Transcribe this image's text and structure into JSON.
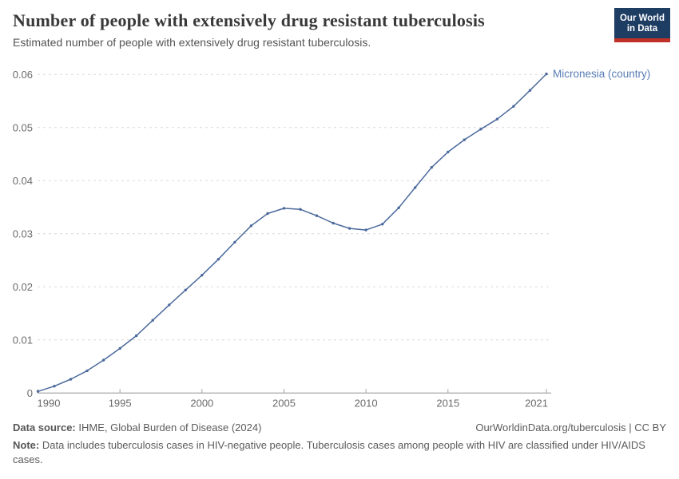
{
  "header": {
    "title": "Number of people with extensively drug resistant tuberculosis",
    "subtitle": "Estimated number of people with extensively drug resistant tuberculosis.",
    "logo_line1": "Our World",
    "logo_line2": "in Data"
  },
  "chart_data": {
    "type": "line",
    "title": "Number of people with extensively drug resistant tuberculosis",
    "xlabel": "",
    "ylabel": "",
    "xlim": [
      1990,
      2021
    ],
    "ylim": [
      0,
      0.06
    ],
    "x_ticks": [
      1990,
      1995,
      2000,
      2005,
      2010,
      2015,
      2021
    ],
    "y_ticks": [
      0,
      0.01,
      0.02,
      0.03,
      0.04,
      0.05,
      0.06
    ],
    "y_tick_labels": [
      "0",
      "0.01",
      "0.02",
      "0.03",
      "0.04",
      "0.05",
      "0.06"
    ],
    "grid": "dashed-horizontal",
    "legend_position": "end-of-line-label",
    "series": [
      {
        "name": "Micronesia (country)",
        "x": [
          1990,
          1991,
          1992,
          1993,
          1994,
          1995,
          1996,
          1997,
          1998,
          1999,
          2000,
          2001,
          2002,
          2003,
          2004,
          2005,
          2006,
          2007,
          2008,
          2009,
          2010,
          2011,
          2012,
          2013,
          2014,
          2015,
          2016,
          2017,
          2018,
          2019,
          2020,
          2021
        ],
        "values": [
          0.0003,
          0.0013,
          0.0026,
          0.0042,
          0.0062,
          0.0084,
          0.0108,
          0.0137,
          0.0166,
          0.0194,
          0.0222,
          0.0252,
          0.0284,
          0.0315,
          0.0338,
          0.0348,
          0.0346,
          0.0334,
          0.032,
          0.031,
          0.0307,
          0.0318,
          0.0349,
          0.0387,
          0.0425,
          0.0454,
          0.0477,
          0.0497,
          0.0516,
          0.054,
          0.057,
          0.0601
        ]
      }
    ],
    "end_label": "Micronesia (country)",
    "colors": {
      "line": "#4C6A9C",
      "end_label": "#577CB5",
      "gridline": "#d9d9d9",
      "axis": "#8f8f8f",
      "tick_mark": "#a0a0a0",
      "tick_label": "#6b6b6b"
    }
  },
  "footer": {
    "data_source_label": "Data source:",
    "data_source_value": "IHME, Global Burden of Disease (2024)",
    "link": "OurWorldinData.org/tuberculosis | CC BY",
    "note_label": "Note:",
    "note_value": "Data includes tuberculosis cases in HIV-negative people. Tuberculosis cases among people with HIV are classified under HIV/AIDS cases."
  }
}
